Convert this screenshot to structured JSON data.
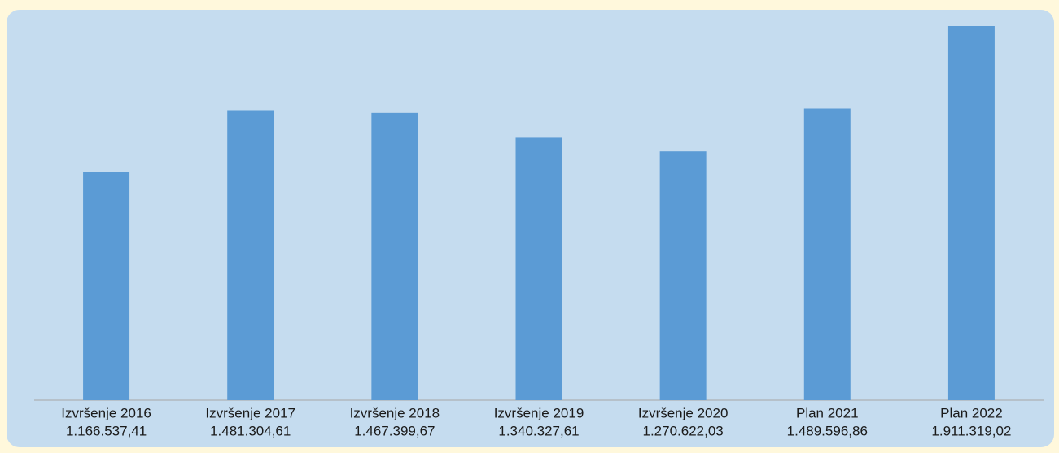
{
  "chart_data": {
    "type": "bar",
    "categories": [
      "Izvršenje 2016",
      "Izvršenje 2017",
      "Izvršenje 2018",
      "Izvršenje 2019",
      "Izvršenje 2020",
      "Plan 2021",
      "Plan 2022"
    ],
    "values": [
      1166537.41,
      1481304.61,
      1467399.67,
      1340327.61,
      1270622.03,
      1489596.86,
      1911319.02
    ],
    "value_labels": [
      "1.166.537,41",
      "1.481.304,61",
      "1.467.399,67",
      "1.340.327,61",
      "1.270.622,03",
      "1.489.596,86",
      "1.911.319,02"
    ],
    "color": "#5b9bd5"
  }
}
